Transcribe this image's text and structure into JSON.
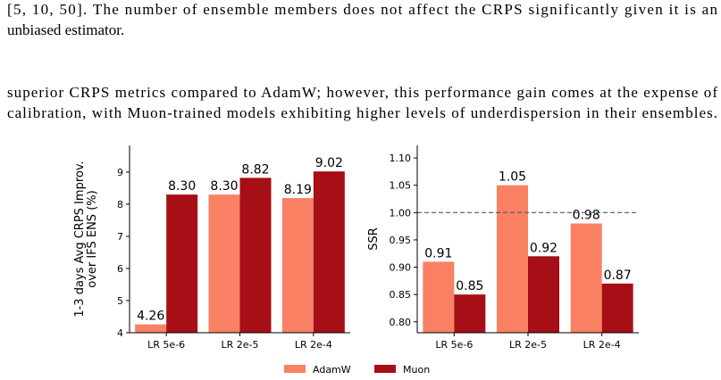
{
  "text": {
    "paragraph_1": [
      "[5, 10, 50]. The number of ensemble members does not affect the CRPS significantly given it is an",
      "unbiased estimator."
    ],
    "paragraph_2": [
      "superior CRPS metrics compared to AdamW; however, this performance gain comes at the expense of",
      "calibration, with Muon-trained models exhibiting higher levels of underdispersion in their ensembles."
    ]
  },
  "chart_data": [
    {
      "type": "bar",
      "y_label": [
        "1-3 days Avg CRPS Improv.",
        "over IFS ENS (%)"
      ],
      "categories": [
        "LR 5e-6",
        "LR 2e-5",
        "LR 2e-4"
      ],
      "series": [
        {
          "name": "AdamW",
          "color": "#fa8064",
          "values": [
            4.26,
            8.3,
            8.19
          ],
          "value_labels": [
            "4.26",
            "8.30",
            "8.19"
          ]
        },
        {
          "name": "Muon",
          "color": "#a50f15",
          "values": [
            8.3,
            8.82,
            9.02
          ],
          "value_labels": [
            "8.30",
            "8.82",
            "9.02"
          ]
        }
      ],
      "ylim": [
        4,
        9.83
      ],
      "yticks": [
        4,
        5,
        6,
        7,
        8,
        9
      ]
    },
    {
      "type": "bar",
      "y_label": [
        "SSR"
      ],
      "categories": [
        "LR 5e-6",
        "LR 2e-5",
        "LR 2e-4"
      ],
      "series": [
        {
          "color": "#fa8064",
          "values": [
            0.91,
            1.05,
            0.98
          ]
        },
        {
          "color": "#a50f15",
          "values": [
            0.85,
            0.92,
            0.87
          ]
        }
      ],
      "ylim": [
        0.78,
        1.123
      ],
      "yticks": [
        {
          "value": 0.8,
          "label": "0.80"
        },
        0.85,
        {
          "value": 0.9,
          "label": "0.90"
        },
        0.95,
        {
          "value": 1.0,
          "label": "1.00"
        },
        1.05,
        {
          "value": 1.1,
          "label": "1.10"
        }
      ],
      "hline": 1.0,
      "hline_color": "#555555"
    }
  ]
}
